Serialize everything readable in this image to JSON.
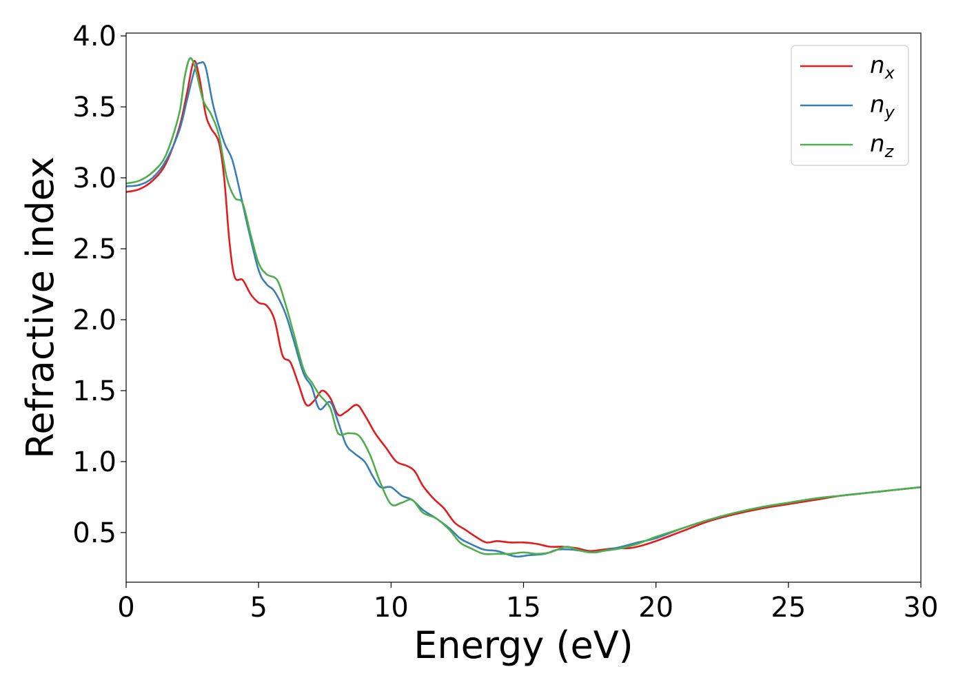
{
  "chart_data": {
    "type": "line",
    "title": "",
    "xlabel": "Energy (eV)",
    "ylabel": "Refractive index",
    "xlim": [
      0,
      30
    ],
    "ylim": [
      0.15,
      4.02
    ],
    "xticks": [
      "0",
      "5",
      "10",
      "15",
      "20",
      "25",
      "30"
    ],
    "yticks": [
      "0.5",
      "1.0",
      "1.5",
      "2.0",
      "2.5",
      "3.0",
      "3.5",
      "4.0"
    ],
    "grid": false,
    "legend_position": "top-right",
    "series": [
      {
        "name": "n_x",
        "label_main": "n",
        "label_sub": "x",
        "color": "#e41a1c",
        "points": [
          [
            0,
            2.9
          ],
          [
            0.5,
            2.92
          ],
          [
            1,
            2.98
          ],
          [
            1.5,
            3.1
          ],
          [
            2,
            3.35
          ],
          [
            2.3,
            3.6
          ],
          [
            2.55,
            3.82
          ],
          [
            2.75,
            3.72
          ],
          [
            3,
            3.45
          ],
          [
            3.2,
            3.35
          ],
          [
            3.5,
            3.25
          ],
          [
            3.7,
            3.0
          ],
          [
            3.9,
            2.55
          ],
          [
            4.1,
            2.3
          ],
          [
            4.4,
            2.28
          ],
          [
            4.7,
            2.18
          ],
          [
            5.0,
            2.12
          ],
          [
            5.3,
            2.1
          ],
          [
            5.6,
            2.0
          ],
          [
            5.9,
            1.75
          ],
          [
            6.2,
            1.7
          ],
          [
            6.5,
            1.55
          ],
          [
            6.8,
            1.4
          ],
          [
            7.1,
            1.43
          ],
          [
            7.4,
            1.5
          ],
          [
            7.7,
            1.45
          ],
          [
            8.0,
            1.33
          ],
          [
            8.3,
            1.35
          ],
          [
            8.7,
            1.4
          ],
          [
            9.0,
            1.33
          ],
          [
            9.4,
            1.2
          ],
          [
            9.8,
            1.1
          ],
          [
            10.2,
            1.0
          ],
          [
            10.6,
            0.97
          ],
          [
            10.9,
            0.93
          ],
          [
            11.2,
            0.83
          ],
          [
            11.6,
            0.74
          ],
          [
            12.0,
            0.67
          ],
          [
            12.4,
            0.57
          ],
          [
            12.8,
            0.52
          ],
          [
            13.2,
            0.47
          ],
          [
            13.6,
            0.43
          ],
          [
            14.0,
            0.44
          ],
          [
            14.5,
            0.43
          ],
          [
            15.0,
            0.43
          ],
          [
            15.5,
            0.42
          ],
          [
            16.0,
            0.4
          ],
          [
            16.5,
            0.4
          ],
          [
            17.0,
            0.39
          ],
          [
            17.5,
            0.37
          ],
          [
            18.0,
            0.38
          ],
          [
            18.5,
            0.39
          ],
          [
            19.0,
            0.39
          ],
          [
            19.5,
            0.41
          ],
          [
            20.0,
            0.44
          ],
          [
            21.0,
            0.51
          ],
          [
            22.0,
            0.58
          ],
          [
            23.0,
            0.63
          ],
          [
            24.0,
            0.67
          ],
          [
            25.0,
            0.7
          ],
          [
            26.0,
            0.73
          ],
          [
            27.0,
            0.76
          ],
          [
            28.0,
            0.78
          ],
          [
            29.0,
            0.8
          ],
          [
            30.0,
            0.82
          ]
        ]
      },
      {
        "name": "n_y",
        "label_main": "n",
        "label_sub": "y",
        "color": "#377eb8",
        "points": [
          [
            0,
            2.94
          ],
          [
            0.5,
            2.95
          ],
          [
            1,
            3.0
          ],
          [
            1.5,
            3.12
          ],
          [
            2,
            3.33
          ],
          [
            2.3,
            3.55
          ],
          [
            2.6,
            3.77
          ],
          [
            2.8,
            3.81
          ],
          [
            3.0,
            3.78
          ],
          [
            3.3,
            3.5
          ],
          [
            3.7,
            3.25
          ],
          [
            4.0,
            3.13
          ],
          [
            4.3,
            2.9
          ],
          [
            4.6,
            2.65
          ],
          [
            5.0,
            2.35
          ],
          [
            5.3,
            2.25
          ],
          [
            5.6,
            2.2
          ],
          [
            6.0,
            2.05
          ],
          [
            6.3,
            1.87
          ],
          [
            6.7,
            1.62
          ],
          [
            7.0,
            1.53
          ],
          [
            7.3,
            1.37
          ],
          [
            7.7,
            1.42
          ],
          [
            8.0,
            1.28
          ],
          [
            8.3,
            1.12
          ],
          [
            8.6,
            1.06
          ],
          [
            9.0,
            1.0
          ],
          [
            9.3,
            0.9
          ],
          [
            9.6,
            0.82
          ],
          [
            10.0,
            0.82
          ],
          [
            10.4,
            0.76
          ],
          [
            10.8,
            0.73
          ],
          [
            11.2,
            0.66
          ],
          [
            11.7,
            0.6
          ],
          [
            12.2,
            0.53
          ],
          [
            12.6,
            0.46
          ],
          [
            13.0,
            0.42
          ],
          [
            13.5,
            0.38
          ],
          [
            14.0,
            0.37
          ],
          [
            14.5,
            0.34
          ],
          [
            14.8,
            0.33
          ],
          [
            15.2,
            0.34
          ],
          [
            15.8,
            0.35
          ],
          [
            16.3,
            0.38
          ],
          [
            16.8,
            0.38
          ],
          [
            17.2,
            0.37
          ],
          [
            17.7,
            0.36
          ],
          [
            18.2,
            0.38
          ],
          [
            18.7,
            0.4
          ],
          [
            19.3,
            0.43
          ],
          [
            20.0,
            0.46
          ],
          [
            21.0,
            0.53
          ],
          [
            22.0,
            0.59
          ],
          [
            23.0,
            0.64
          ],
          [
            24.0,
            0.68
          ],
          [
            25.0,
            0.71
          ],
          [
            26.0,
            0.74
          ],
          [
            27.0,
            0.76
          ],
          [
            28.0,
            0.78
          ],
          [
            29.0,
            0.8
          ],
          [
            30.0,
            0.82
          ]
        ]
      },
      {
        "name": "n_z",
        "label_main": "n",
        "label_sub": "z",
        "color": "#4daf4a",
        "points": [
          [
            0,
            2.96
          ],
          [
            0.5,
            2.98
          ],
          [
            1,
            3.04
          ],
          [
            1.5,
            3.16
          ],
          [
            2,
            3.45
          ],
          [
            2.2,
            3.7
          ],
          [
            2.4,
            3.84
          ],
          [
            2.6,
            3.78
          ],
          [
            2.9,
            3.55
          ],
          [
            3.2,
            3.45
          ],
          [
            3.5,
            3.3
          ],
          [
            3.8,
            3.0
          ],
          [
            4.1,
            2.86
          ],
          [
            4.4,
            2.82
          ],
          [
            4.7,
            2.6
          ],
          [
            5.0,
            2.4
          ],
          [
            5.3,
            2.32
          ],
          [
            5.7,
            2.28
          ],
          [
            6.0,
            2.12
          ],
          [
            6.3,
            1.92
          ],
          [
            6.7,
            1.65
          ],
          [
            7.0,
            1.56
          ],
          [
            7.3,
            1.47
          ],
          [
            7.7,
            1.38
          ],
          [
            8.0,
            1.2
          ],
          [
            8.4,
            1.2
          ],
          [
            8.8,
            1.18
          ],
          [
            9.2,
            1.05
          ],
          [
            9.6,
            0.85
          ],
          [
            10.0,
            0.7
          ],
          [
            10.4,
            0.71
          ],
          [
            10.8,
            0.73
          ],
          [
            11.2,
            0.64
          ],
          [
            11.7,
            0.6
          ],
          [
            12.2,
            0.52
          ],
          [
            12.6,
            0.43
          ],
          [
            13.0,
            0.39
          ],
          [
            13.5,
            0.35
          ],
          [
            14.0,
            0.35
          ],
          [
            14.5,
            0.35
          ],
          [
            15.0,
            0.36
          ],
          [
            15.5,
            0.35
          ],
          [
            16.0,
            0.36
          ],
          [
            16.6,
            0.4
          ],
          [
            17.0,
            0.38
          ],
          [
            17.5,
            0.36
          ],
          [
            18.0,
            0.37
          ],
          [
            18.7,
            0.39
          ],
          [
            19.3,
            0.42
          ],
          [
            20.0,
            0.47
          ],
          [
            21.0,
            0.53
          ],
          [
            22.0,
            0.59
          ],
          [
            23.0,
            0.64
          ],
          [
            24.0,
            0.68
          ],
          [
            25.0,
            0.71
          ],
          [
            26.0,
            0.74
          ],
          [
            27.0,
            0.76
          ],
          [
            28.0,
            0.78
          ],
          [
            29.0,
            0.8
          ],
          [
            30.0,
            0.82
          ]
        ]
      }
    ]
  }
}
